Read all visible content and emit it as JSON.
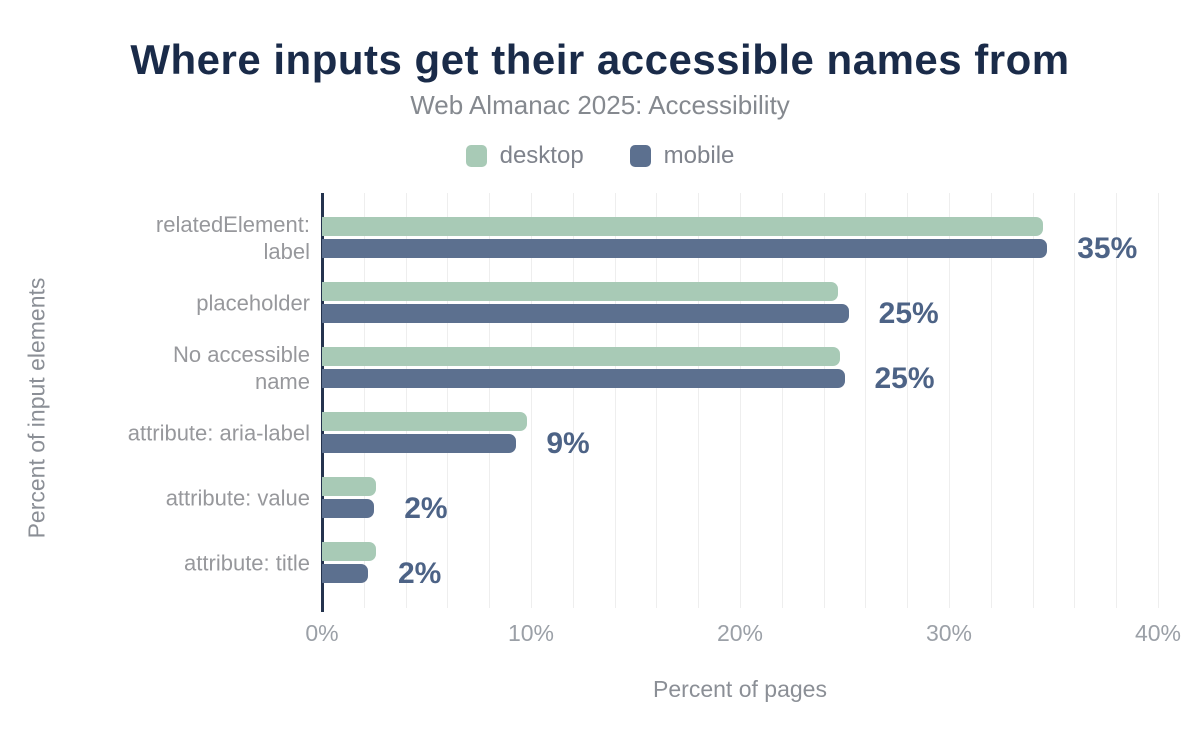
{
  "header": {
    "title": "Where inputs get their accessible names from",
    "subtitle": "Web Almanac 2025: Accessibility"
  },
  "legend": [
    {
      "label": "desktop",
      "color": "#a8cab6"
    },
    {
      "label": "mobile",
      "color": "#5c708f"
    }
  ],
  "chart_data": {
    "type": "bar",
    "orientation": "horizontal",
    "title": "Where inputs get their accessible names from",
    "subtitle": "Web Almanac 2025: Accessibility",
    "xlabel": "Percent of pages",
    "ylabel": "Percent of input elements",
    "xlim": [
      0,
      40
    ],
    "grid_step": 2,
    "x_ticks": [
      {
        "value": 0,
        "label": "0%"
      },
      {
        "value": 10,
        "label": "10%"
      },
      {
        "value": 20,
        "label": "20%"
      },
      {
        "value": 30,
        "label": "30%"
      },
      {
        "value": 40,
        "label": "40%"
      }
    ],
    "categories": [
      {
        "lines": [
          "relatedElement:",
          "label"
        ]
      },
      {
        "lines": [
          "placeholder"
        ]
      },
      {
        "lines": [
          "No accessible",
          "name"
        ]
      },
      {
        "lines": [
          "attribute: aria-label"
        ]
      },
      {
        "lines": [
          "attribute: value"
        ]
      },
      {
        "lines": [
          "attribute: title"
        ]
      }
    ],
    "series": [
      {
        "name": "desktop",
        "color": "#a8cab6",
        "values": [
          34.5,
          24.7,
          24.8,
          9.8,
          2.6,
          2.6
        ]
      },
      {
        "name": "mobile",
        "color": "#5c708f",
        "values": [
          34.7,
          25.2,
          25.0,
          9.3,
          2.5,
          2.2
        ]
      }
    ],
    "value_labels": [
      "35%",
      "25%",
      "25%",
      "9%",
      "2%",
      "2%"
    ],
    "legend_position": "top",
    "grid": true
  },
  "colors": {
    "title": "#1a2b49",
    "subtitle": "#85898f",
    "axis_line": "#24334e",
    "gridline": "#eeeeee",
    "category_text": "#97989c",
    "tick_text": "#9ba0a7",
    "value_text": "#4d6386",
    "background": "#ffffff"
  }
}
